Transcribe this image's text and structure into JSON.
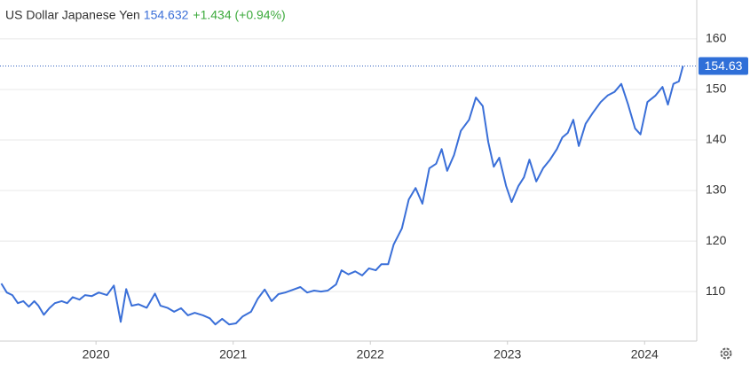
{
  "chart_data": {
    "type": "line",
    "title": "US Dollar Japanese Yen",
    "price": 154.632,
    "change": "+1.434 (+0.94%)",
    "price_tag": "154.63",
    "color": "#3a6fd8",
    "x": [
      2019.31,
      2019.35,
      2019.39,
      2019.43,
      2019.47,
      2019.51,
      2019.55,
      2019.58,
      2019.62,
      2019.66,
      2019.7,
      2019.75,
      2019.79,
      2019.83,
      2019.88,
      2019.92,
      2019.97,
      2020.02,
      2020.08,
      2020.13,
      2020.18,
      2020.22,
      2020.26,
      2020.31,
      2020.37,
      2020.43,
      2020.47,
      2020.52,
      2020.57,
      2020.62,
      2020.67,
      2020.72,
      2020.78,
      2020.83,
      2020.87,
      2020.92,
      2020.97,
      2021.02,
      2021.07,
      2021.13,
      2021.18,
      2021.23,
      2021.28,
      2021.33,
      2021.38,
      2021.44,
      2021.49,
      2021.54,
      2021.59,
      2021.64,
      2021.69,
      2021.75,
      2021.79,
      2021.84,
      2021.89,
      2021.94,
      2021.99,
      2022.04,
      2022.08,
      2022.13,
      2022.17,
      2022.23,
      2022.28,
      2022.33,
      2022.38,
      2022.43,
      2022.48,
      2022.52,
      2022.56,
      2022.61,
      2022.66,
      2022.72,
      2022.77,
      2022.82,
      2022.86,
      2022.9,
      2022.94,
      2022.99,
      2023.03,
      2023.08,
      2023.12,
      2023.16,
      2023.21,
      2023.26,
      2023.31,
      2023.36,
      2023.4,
      2023.44,
      2023.48,
      2023.52,
      2023.57,
      2023.62,
      2023.68,
      2023.73,
      2023.78,
      2023.83,
      2023.88,
      2023.93,
      2023.97,
      2024.02,
      2024.08,
      2024.13,
      2024.17,
      2024.21,
      2024.25,
      2024.28
    ],
    "values": [
      111.6,
      109.8,
      109.3,
      107.7,
      108.1,
      107.0,
      108.1,
      107.2,
      105.4,
      106.7,
      107.7,
      108.1,
      107.7,
      108.9,
      108.4,
      109.3,
      109.1,
      109.8,
      109.3,
      111.2,
      104.0,
      110.5,
      107.2,
      107.5,
      106.8,
      109.6,
      107.2,
      106.8,
      106.0,
      106.7,
      105.3,
      105.8,
      105.3,
      104.7,
      103.5,
      104.6,
      103.5,
      103.7,
      105.1,
      106.0,
      108.6,
      110.4,
      108.1,
      109.5,
      109.8,
      110.4,
      110.9,
      109.8,
      110.2,
      110.0,
      110.2,
      111.4,
      114.2,
      113.4,
      114.0,
      113.2,
      114.6,
      114.2,
      115.4,
      115.4,
      119.3,
      122.5,
      128.2,
      130.5,
      127.4,
      134.4,
      135.3,
      138.2,
      133.9,
      137.0,
      141.8,
      144.0,
      148.4,
      146.7,
      139.6,
      134.7,
      136.5,
      130.9,
      127.7,
      130.9,
      132.6,
      136.1,
      131.8,
      134.4,
      136.1,
      138.2,
      140.5,
      141.4,
      144.0,
      138.8,
      143.2,
      145.3,
      147.5,
      148.8,
      149.5,
      151.1,
      147.0,
      142.3,
      141.1,
      147.5,
      148.8,
      150.5,
      147.0,
      151.1,
      151.6,
      154.632
    ],
    "xlim": [
      2019.3,
      2024.38
    ],
    "xticks": [
      2020,
      2021,
      2022,
      2023,
      2024
    ],
    "ylim": [
      100.2,
      167.7
    ],
    "yticks": [
      110,
      120,
      130,
      140,
      150,
      160
    ],
    "grid": true
  }
}
